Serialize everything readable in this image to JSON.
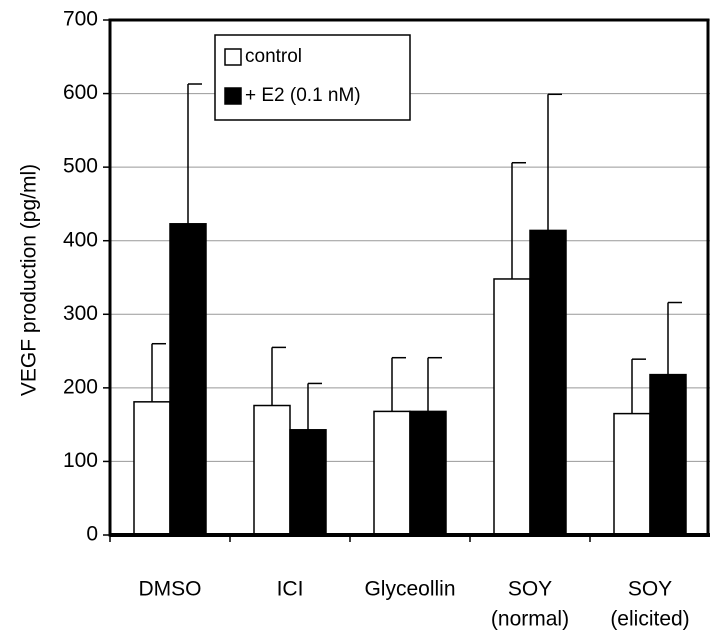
{
  "chart_data": {
    "type": "bar",
    "y_label": "VEGF production (pg/ml)",
    "categories": [
      [
        "DMSO"
      ],
      [
        "ICI"
      ],
      [
        "Glyceollin"
      ],
      [
        "SOY",
        "(normal)"
      ],
      [
        "SOY",
        "(elicited)"
      ]
    ],
    "series": [
      {
        "name": "control",
        "color": "#ffffff",
        "values": [
          181,
          176,
          168,
          348,
          165
        ],
        "errors": [
          79,
          79,
          73,
          158,
          74
        ]
      },
      {
        "name": "+ E2 (0.1 nM)",
        "color": "#000000",
        "values": [
          423,
          143,
          168,
          414,
          218
        ],
        "errors": [
          190,
          63,
          73,
          185,
          98
        ]
      }
    ],
    "ylim": [
      0,
      700
    ],
    "yticks": [
      0,
      100,
      200,
      300,
      400,
      500,
      600,
      700
    ],
    "grid": true,
    "legend": "upper left"
  }
}
